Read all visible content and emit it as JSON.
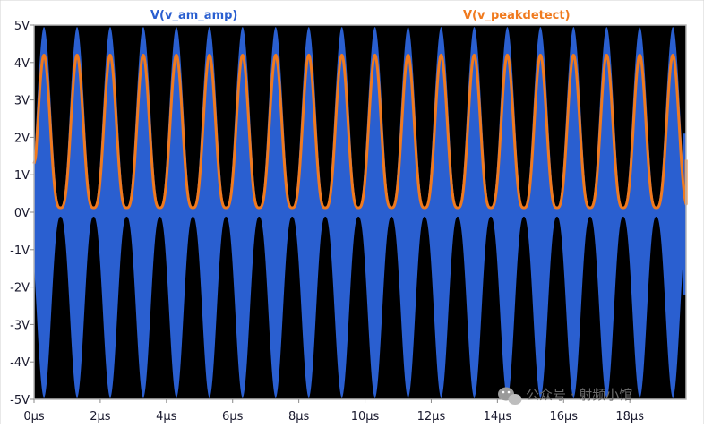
{
  "chart_data": {
    "type": "line",
    "xlabel": "",
    "ylabel": "",
    "xlim": [
      0,
      19.7
    ],
    "ylim": [
      -5,
      5
    ],
    "x_ticks": [
      {
        "value": 0,
        "label": "0µs"
      },
      {
        "value": 2,
        "label": "2µs"
      },
      {
        "value": 4,
        "label": "4µs"
      },
      {
        "value": 6,
        "label": "6µs"
      },
      {
        "value": 8,
        "label": "8µs"
      },
      {
        "value": 10,
        "label": "10µs"
      },
      {
        "value": 12,
        "label": "12µs"
      },
      {
        "value": 14,
        "label": "14µs"
      },
      {
        "value": 16,
        "label": "16µs"
      },
      {
        "value": 18,
        "label": "18µs"
      }
    ],
    "y_ticks": [
      {
        "value": 5,
        "label": "5V"
      },
      {
        "value": 4,
        "label": "4V"
      },
      {
        "value": 3,
        "label": "3V"
      },
      {
        "value": 2,
        "label": "2V"
      },
      {
        "value": 1,
        "label": "1V"
      },
      {
        "value": 0,
        "label": "0V"
      },
      {
        "value": -1,
        "label": "-1V"
      },
      {
        "value": -2,
        "label": "-2V"
      },
      {
        "value": -3,
        "label": "-3V"
      },
      {
        "value": -4,
        "label": "-4V"
      },
      {
        "value": -5,
        "label": "-5V"
      }
    ],
    "grid": false,
    "background": "#000000",
    "series": [
      {
        "name": "V(v_am_amp)",
        "kind": "am-envelope",
        "color": "#2a5fd0",
        "envelope_peak": 4.95,
        "envelope_trough": 0.12,
        "period_us": 1.0,
        "first_peak_us": 0.3,
        "end_us": 19.7,
        "end_band": [
          -2.2,
          2.1
        ]
      },
      {
        "name": "V(v_peakdetect)",
        "kind": "peak-detector",
        "color": "#f07a1e",
        "max": 4.2,
        "min": 0.12,
        "period_us": 1.0,
        "first_peak_us": 0.3,
        "start_value": 1.3,
        "end_value": 1.4,
        "end_us": 19.7
      }
    ],
    "legend": [
      {
        "label": "V(v_am_amp)",
        "color": "#2a5fd0",
        "placement": "top-left"
      },
      {
        "label": "V(v_peakdetect)",
        "color": "#f07a1e",
        "placement": "top-right"
      }
    ]
  },
  "watermark": {
    "icon": "wechat-icon",
    "text": "公众号 · 射频小馆"
  }
}
